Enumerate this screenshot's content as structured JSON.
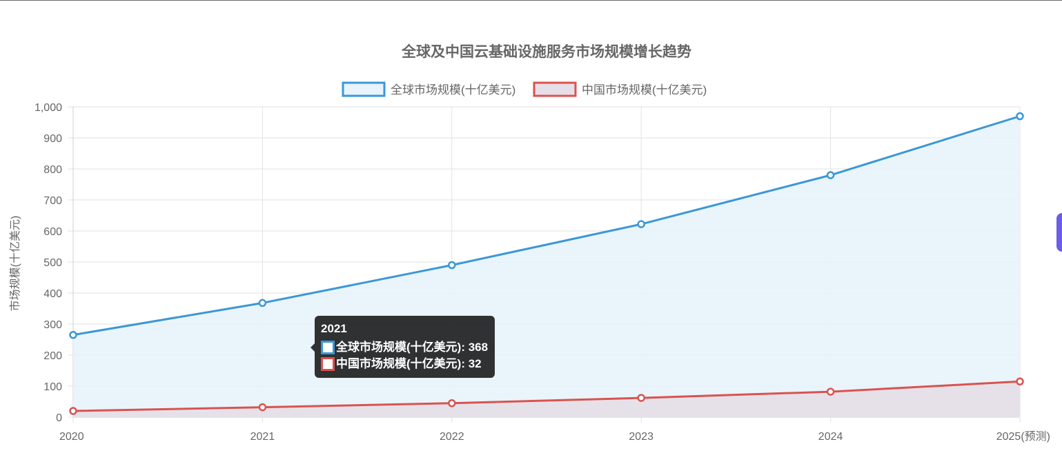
{
  "chart_data": {
    "type": "area",
    "title": "全球及中国云基础设施服务市场规模增长趋势",
    "categories": [
      "2020",
      "2021",
      "2022",
      "2023",
      "2024",
      "2025(预测)"
    ],
    "series": [
      {
        "name": "全球市场规模(十亿美元)",
        "values": [
          265,
          368,
          490,
          622,
          780,
          970
        ],
        "color": "#3a97d7",
        "fill": "#e8f3fb"
      },
      {
        "name": "中国市场规模(十亿美元)",
        "values": [
          20,
          32,
          45,
          62,
          82,
          115
        ],
        "color": "#d9534f",
        "fill": "#e6dfe7"
      }
    ],
    "xlabel": "",
    "ylabel": "市场规模(十亿美元)",
    "ylim": [
      0,
      1000
    ],
    "yticks": [
      "0",
      "100",
      "200",
      "300",
      "400",
      "500",
      "600",
      "700",
      "800",
      "900",
      "1,000"
    ],
    "grid": true,
    "legend_position": "top"
  },
  "tooltip": {
    "title": "2021",
    "rows": [
      {
        "text": "全球市场规模(十亿美元): 368",
        "color": "#3a97d7"
      },
      {
        "text": "中国市场规模(十亿美元): 32",
        "color": "#d9534f"
      }
    ]
  }
}
